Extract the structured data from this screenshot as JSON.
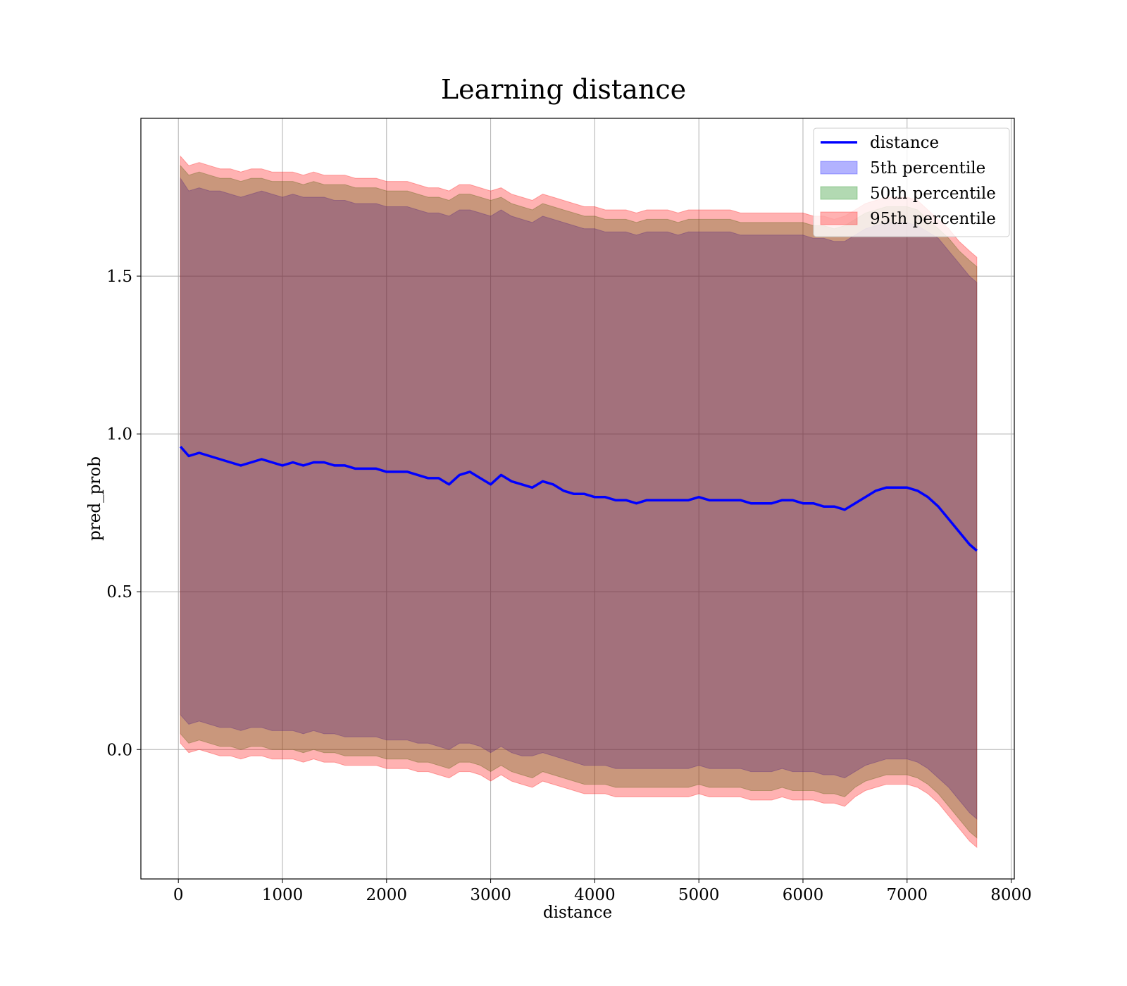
{
  "chart_data": {
    "type": "area",
    "title": "Learning distance",
    "xlabel": "distance",
    "ylabel": "pred_prob",
    "xlim": [
      -360,
      8030
    ],
    "ylim": [
      -0.41,
      2.0
    ],
    "xticks": [
      0,
      1000,
      2000,
      3000,
      4000,
      5000,
      6000,
      7000,
      8000
    ],
    "xtick_labels": [
      "0",
      "1000",
      "2000",
      "3000",
      "4000",
      "5000",
      "6000",
      "7000",
      "8000"
    ],
    "yticks": [
      0.0,
      0.5,
      1.0,
      1.5
    ],
    "ytick_labels": [
      "0.0",
      "0.5",
      "1.0",
      "1.5"
    ],
    "grid": true,
    "legend_position": "top-right",
    "x": [
      20,
      100,
      200,
      300,
      400,
      500,
      600,
      700,
      800,
      900,
      1000,
      1100,
      1200,
      1300,
      1400,
      1500,
      1600,
      1700,
      1800,
      1900,
      2000,
      2100,
      2200,
      2300,
      2400,
      2500,
      2600,
      2700,
      2800,
      2900,
      3000,
      3100,
      3200,
      3300,
      3400,
      3500,
      3600,
      3700,
      3800,
      3900,
      4000,
      4100,
      4200,
      4300,
      4400,
      4500,
      4600,
      4700,
      4800,
      4900,
      5000,
      5100,
      5200,
      5300,
      5400,
      5500,
      5600,
      5700,
      5800,
      5900,
      6000,
      6100,
      6200,
      6300,
      6400,
      6500,
      6600,
      6700,
      6800,
      6900,
      7000,
      7100,
      7200,
      7300,
      7400,
      7500,
      7600,
      7670
    ],
    "series": [
      {
        "name": "distance",
        "kind": "line",
        "color": "#0000ff",
        "values": [
          0.96,
          0.93,
          0.94,
          0.93,
          0.92,
          0.91,
          0.9,
          0.91,
          0.92,
          0.91,
          0.9,
          0.91,
          0.9,
          0.91,
          0.91,
          0.9,
          0.9,
          0.89,
          0.89,
          0.89,
          0.88,
          0.88,
          0.88,
          0.87,
          0.86,
          0.86,
          0.84,
          0.87,
          0.88,
          0.86,
          0.84,
          0.87,
          0.85,
          0.84,
          0.83,
          0.85,
          0.84,
          0.82,
          0.81,
          0.81,
          0.8,
          0.8,
          0.79,
          0.79,
          0.78,
          0.79,
          0.79,
          0.79,
          0.79,
          0.79,
          0.8,
          0.79,
          0.79,
          0.79,
          0.79,
          0.78,
          0.78,
          0.78,
          0.79,
          0.79,
          0.78,
          0.78,
          0.77,
          0.77,
          0.76,
          0.78,
          0.8,
          0.82,
          0.83,
          0.83,
          0.83,
          0.82,
          0.8,
          0.77,
          0.73,
          0.69,
          0.65,
          0.63
        ]
      },
      {
        "name": "5th percentile",
        "kind": "band",
        "color": "#0000ff",
        "lower": [
          0.11,
          0.08,
          0.09,
          0.08,
          0.07,
          0.07,
          0.06,
          0.07,
          0.07,
          0.06,
          0.06,
          0.06,
          0.05,
          0.06,
          0.05,
          0.05,
          0.04,
          0.04,
          0.04,
          0.04,
          0.03,
          0.03,
          0.03,
          0.02,
          0.02,
          0.01,
          0.0,
          0.02,
          0.02,
          0.01,
          -0.01,
          0.01,
          -0.01,
          -0.02,
          -0.02,
          -0.01,
          -0.02,
          -0.03,
          -0.04,
          -0.05,
          -0.05,
          -0.05,
          -0.06,
          -0.06,
          -0.06,
          -0.06,
          -0.06,
          -0.06,
          -0.06,
          -0.06,
          -0.05,
          -0.06,
          -0.06,
          -0.06,
          -0.06,
          -0.07,
          -0.07,
          -0.07,
          -0.06,
          -0.07,
          -0.07,
          -0.07,
          -0.08,
          -0.08,
          -0.09,
          -0.07,
          -0.05,
          -0.04,
          -0.03,
          -0.03,
          -0.03,
          -0.04,
          -0.06,
          -0.09,
          -0.12,
          -0.16,
          -0.2,
          -0.22
        ],
        "upper": [
          1.81,
          1.77,
          1.78,
          1.77,
          1.77,
          1.76,
          1.75,
          1.76,
          1.77,
          1.76,
          1.75,
          1.76,
          1.75,
          1.75,
          1.75,
          1.74,
          1.74,
          1.73,
          1.73,
          1.73,
          1.72,
          1.72,
          1.72,
          1.71,
          1.7,
          1.7,
          1.69,
          1.71,
          1.71,
          1.7,
          1.69,
          1.71,
          1.69,
          1.68,
          1.67,
          1.69,
          1.68,
          1.67,
          1.66,
          1.65,
          1.65,
          1.64,
          1.64,
          1.64,
          1.63,
          1.64,
          1.64,
          1.64,
          1.63,
          1.64,
          1.64,
          1.64,
          1.64,
          1.64,
          1.63,
          1.63,
          1.63,
          1.63,
          1.63,
          1.63,
          1.63,
          1.62,
          1.62,
          1.61,
          1.61,
          1.63,
          1.65,
          1.66,
          1.67,
          1.67,
          1.67,
          1.66,
          1.64,
          1.62,
          1.58,
          1.54,
          1.5,
          1.48
        ]
      },
      {
        "name": "50th percentile",
        "kind": "band",
        "color": "#008000",
        "lower": [
          0.05,
          0.02,
          0.03,
          0.02,
          0.01,
          0.01,
          0.0,
          0.01,
          0.01,
          0.0,
          0.0,
          0.0,
          -0.01,
          0.0,
          -0.01,
          -0.01,
          -0.02,
          -0.02,
          -0.02,
          -0.02,
          -0.03,
          -0.03,
          -0.03,
          -0.04,
          -0.04,
          -0.05,
          -0.06,
          -0.04,
          -0.04,
          -0.05,
          -0.07,
          -0.05,
          -0.07,
          -0.08,
          -0.09,
          -0.07,
          -0.08,
          -0.09,
          -0.1,
          -0.11,
          -0.11,
          -0.11,
          -0.12,
          -0.12,
          -0.12,
          -0.12,
          -0.12,
          -0.12,
          -0.12,
          -0.12,
          -0.11,
          -0.12,
          -0.12,
          -0.12,
          -0.12,
          -0.13,
          -0.13,
          -0.13,
          -0.12,
          -0.13,
          -0.13,
          -0.13,
          -0.14,
          -0.14,
          -0.15,
          -0.12,
          -0.1,
          -0.09,
          -0.08,
          -0.08,
          -0.08,
          -0.09,
          -0.11,
          -0.14,
          -0.18,
          -0.22,
          -0.26,
          -0.28
        ],
        "upper": [
          1.85,
          1.82,
          1.83,
          1.82,
          1.81,
          1.81,
          1.8,
          1.81,
          1.81,
          1.8,
          1.8,
          1.8,
          1.79,
          1.8,
          1.79,
          1.79,
          1.79,
          1.78,
          1.78,
          1.78,
          1.77,
          1.77,
          1.77,
          1.76,
          1.75,
          1.75,
          1.74,
          1.76,
          1.76,
          1.75,
          1.74,
          1.75,
          1.73,
          1.72,
          1.71,
          1.73,
          1.72,
          1.71,
          1.7,
          1.69,
          1.69,
          1.68,
          1.68,
          1.68,
          1.67,
          1.68,
          1.68,
          1.68,
          1.67,
          1.68,
          1.68,
          1.68,
          1.68,
          1.68,
          1.67,
          1.67,
          1.67,
          1.67,
          1.67,
          1.67,
          1.67,
          1.66,
          1.66,
          1.65,
          1.66,
          1.68,
          1.7,
          1.71,
          1.72,
          1.72,
          1.72,
          1.71,
          1.68,
          1.65,
          1.62,
          1.58,
          1.55,
          1.53
        ]
      },
      {
        "name": "95th percentile",
        "kind": "band",
        "color": "#ff0000",
        "lower": [
          0.02,
          -0.01,
          0.0,
          -0.01,
          -0.02,
          -0.02,
          -0.03,
          -0.02,
          -0.02,
          -0.03,
          -0.03,
          -0.03,
          -0.04,
          -0.03,
          -0.04,
          -0.04,
          -0.05,
          -0.05,
          -0.05,
          -0.05,
          -0.06,
          -0.06,
          -0.06,
          -0.07,
          -0.07,
          -0.08,
          -0.09,
          -0.07,
          -0.07,
          -0.08,
          -0.1,
          -0.08,
          -0.1,
          -0.11,
          -0.12,
          -0.1,
          -0.11,
          -0.12,
          -0.13,
          -0.14,
          -0.14,
          -0.14,
          -0.15,
          -0.15,
          -0.15,
          -0.15,
          -0.15,
          -0.15,
          -0.15,
          -0.15,
          -0.14,
          -0.15,
          -0.15,
          -0.15,
          -0.15,
          -0.16,
          -0.16,
          -0.16,
          -0.15,
          -0.16,
          -0.16,
          -0.16,
          -0.17,
          -0.17,
          -0.18,
          -0.15,
          -0.13,
          -0.12,
          -0.11,
          -0.11,
          -0.11,
          -0.12,
          -0.14,
          -0.17,
          -0.21,
          -0.25,
          -0.29,
          -0.31
        ],
        "upper": [
          1.88,
          1.85,
          1.86,
          1.85,
          1.84,
          1.84,
          1.83,
          1.84,
          1.84,
          1.83,
          1.83,
          1.83,
          1.82,
          1.83,
          1.82,
          1.82,
          1.82,
          1.81,
          1.81,
          1.81,
          1.8,
          1.8,
          1.8,
          1.79,
          1.78,
          1.78,
          1.77,
          1.79,
          1.79,
          1.78,
          1.77,
          1.78,
          1.76,
          1.75,
          1.74,
          1.76,
          1.75,
          1.74,
          1.73,
          1.72,
          1.72,
          1.71,
          1.71,
          1.71,
          1.7,
          1.71,
          1.71,
          1.71,
          1.7,
          1.71,
          1.71,
          1.71,
          1.71,
          1.71,
          1.7,
          1.7,
          1.7,
          1.7,
          1.7,
          1.7,
          1.7,
          1.69,
          1.69,
          1.68,
          1.69,
          1.71,
          1.73,
          1.74,
          1.75,
          1.75,
          1.75,
          1.74,
          1.71,
          1.68,
          1.65,
          1.61,
          1.58,
          1.56
        ]
      }
    ]
  }
}
